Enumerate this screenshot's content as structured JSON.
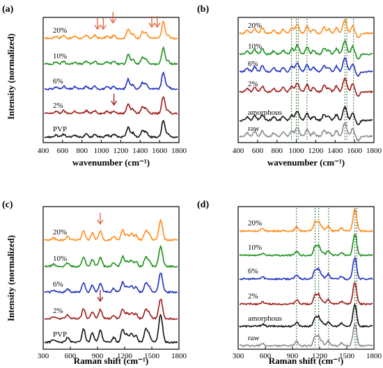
{
  "colors": {
    "orange": "#ff8c1a",
    "green": "#1a8f1a",
    "blue": "#1f2fbf",
    "darkred": "#a01818",
    "black": "#111111",
    "gray": "#8a8a8a",
    "arrow": "#e0603a",
    "guide": "#2f6b2f"
  },
  "chart_data": [
    {
      "type": "line",
      "panel_label": "(a)",
      "xlabel": "wavenumber (cm⁻¹)",
      "ylabel": "Intensity (normalized)",
      "xlim": [
        400,
        1800
      ],
      "xticks": [
        "400",
        "600",
        "800",
        "1000",
        "1200",
        "1400",
        "1600",
        "1800"
      ],
      "series": [
        {
          "name": "20%",
          "color": "orange",
          "peaks": [
            [
              1280,
              0.55
            ],
            [
              1450,
              0.4
            ],
            [
              1650,
              1.0
            ]
          ]
        },
        {
          "name": "10%",
          "color": "green",
          "peaks": [
            [
              1280,
              0.55
            ],
            [
              1450,
              0.45
            ],
            [
              1650,
              1.0
            ]
          ]
        },
        {
          "name": "6%",
          "color": "blue",
          "peaks": [
            [
              1280,
              0.55
            ],
            [
              1450,
              0.45
            ],
            [
              1650,
              1.0
            ]
          ]
        },
        {
          "name": "2%",
          "color": "darkred",
          "peaks": [
            [
              1280,
              0.6
            ],
            [
              1450,
              0.5
            ],
            [
              1650,
              1.0
            ]
          ]
        },
        {
          "name": "PVP",
          "color": "black",
          "peaks": [
            [
              1280,
              0.55
            ],
            [
              1450,
              0.5
            ],
            [
              1650,
              1.0
            ]
          ]
        }
      ],
      "arrows_at": [
        960,
        1020,
        1120,
        1520,
        1575,
        1130
      ]
    },
    {
      "type": "line",
      "panel_label": "(b)",
      "xlabel": "wavenumber (cm⁻¹)",
      "ylabel": "",
      "xlim": [
        400,
        1800
      ],
      "xticks": [
        "400",
        "600",
        "800",
        "1000",
        "1200",
        "1400",
        "1600",
        "1800"
      ],
      "guides_at": [
        950,
        1000,
        1020,
        1110,
        1500,
        1520,
        1590
      ],
      "series": [
        {
          "name": "20%",
          "color": "orange"
        },
        {
          "name": "10%",
          "color": "green"
        },
        {
          "name": "6%",
          "color": "blue"
        },
        {
          "name": "2%",
          "color": "darkred"
        },
        {
          "name": "amorphous",
          "color": "black"
        },
        {
          "name": "raw",
          "color": "gray"
        }
      ]
    },
    {
      "type": "line",
      "panel_label": "(c)",
      "xlabel": "Raman shift (cm⁻¹)",
      "ylabel": "Intensity (normalized)",
      "xlim": [
        300,
        1800
      ],
      "xticks": [
        "300",
        "600",
        "900",
        "1200",
        "1500",
        "1800"
      ],
      "series": [
        {
          "name": "20%",
          "color": "orange"
        },
        {
          "name": "10%",
          "color": "green"
        },
        {
          "name": "6%",
          "color": "blue"
        },
        {
          "name": "2%",
          "color": "darkred"
        },
        {
          "name": "PVP",
          "color": "black"
        }
      ],
      "arrows_at": [
        930,
        930
      ]
    },
    {
      "type": "line",
      "panel_label": "(d)",
      "xlabel": "Raman shift (cm⁻¹)",
      "ylabel": "",
      "xlim": [
        300,
        1800
      ],
      "xticks": [
        "300",
        "600",
        "900",
        "1200",
        "1500",
        "1800"
      ],
      "guides_at": [
        945,
        1150,
        1190,
        1300,
        1590,
        1610
      ],
      "series": [
        {
          "name": "20%",
          "color": "orange"
        },
        {
          "name": "10%",
          "color": "green"
        },
        {
          "name": "6%",
          "color": "blue"
        },
        {
          "name": "2%",
          "color": "darkred"
        },
        {
          "name": "amorphous",
          "color": "black"
        },
        {
          "name": "raw",
          "color": "gray"
        }
      ]
    }
  ]
}
